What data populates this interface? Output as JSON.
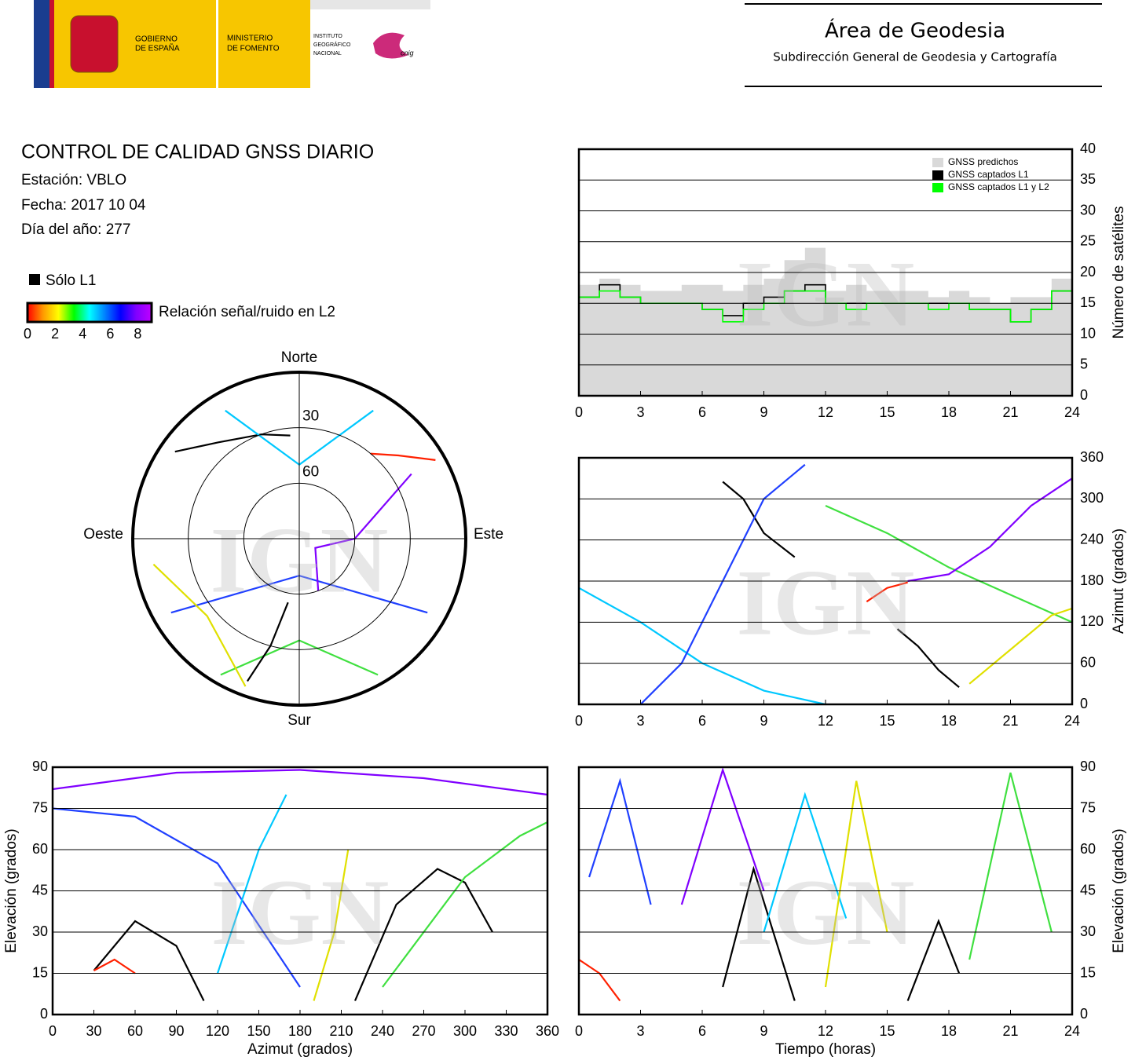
{
  "logos": {
    "gobierno": [
      "GOBIERNO",
      "DE ESPAÑA"
    ],
    "ministerio": [
      "MINISTERIO",
      "DE FOMENTO"
    ],
    "instituto": [
      "INSTITUTO",
      "GEOGRÁFICO",
      "NACIONAL"
    ],
    "cnig": "cnig"
  },
  "area": {
    "title": "Área de Geodesia",
    "subtitle": "Subdirección General de Geodesia y Cartografía"
  },
  "report": {
    "title": "CONTROL DE CALIDAD GNSS DIARIO",
    "lines": [
      "Estación: VBLO",
      "Fecha: 2017 10 04",
      "Día del año: 277"
    ]
  },
  "legend": {
    "solo_l1": "Sólo L1",
    "solo_l1_color": "#000000",
    "snr_label": "Relación señal/ruido en L2",
    "snr_lim": [
      0,
      9
    ],
    "snr_ticks": [
      0,
      2,
      4,
      6,
      8
    ],
    "snr_colors": [
      "#ff0000",
      "#ff9900",
      "#ffff00",
      "#00ff00",
      "#00ffff",
      "#0080ff",
      "#0000ff",
      "#8000ff",
      "#c000ff"
    ]
  },
  "watermark": "IGN",
  "chart_data": [
    {
      "type": "step",
      "xlim": [
        0,
        24
      ],
      "xticks": [
        0,
        3,
        6,
        9,
        12,
        15,
        18,
        21,
        24
      ],
      "ylim": [
        0,
        40
      ],
      "yticks": [
        0,
        5,
        10,
        15,
        20,
        25,
        30,
        35,
        40
      ],
      "ylabel": "Número de satélites",
      "y_axis_side": "right",
      "grid": true,
      "legend": "upper right",
      "x": [
        0,
        1,
        2,
        3,
        4,
        5,
        6,
        7,
        8,
        9,
        10,
        11,
        12,
        13,
        14,
        15,
        16,
        17,
        18,
        19,
        20,
        21,
        22,
        23,
        24
      ],
      "series": [
        {
          "name": "GNSS predichos",
          "color": "#d9d9d9",
          "style": "area",
          "values": [
            18,
            19,
            18,
            17,
            17,
            18,
            18,
            17,
            18,
            19,
            22,
            24,
            17,
            18,
            17,
            17,
            17,
            16,
            17,
            16,
            15,
            16,
            16,
            19,
            19
          ]
        },
        {
          "name": "GNSS captados L1",
          "color": "#000000",
          "style": "line",
          "values": [
            16,
            18,
            16,
            15,
            15,
            15,
            14,
            13,
            15,
            16,
            17,
            18,
            15,
            15,
            15,
            15,
            15,
            15,
            15,
            14,
            14,
            12,
            14,
            17,
            17
          ]
        },
        {
          "name": "GNSS captados L1 y L2",
          "color": "#00ff00",
          "style": "line",
          "values": [
            16,
            17,
            16,
            15,
            15,
            15,
            14,
            12,
            14,
            15,
            17,
            17,
            15,
            14,
            15,
            15,
            15,
            14,
            15,
            14,
            14,
            12,
            14,
            17,
            17
          ]
        }
      ]
    },
    {
      "type": "polar",
      "directions": {
        "north": "Norte",
        "south": "Sur",
        "east": "Este",
        "west": "Oeste"
      },
      "rlim": [
        90,
        0
      ],
      "rticks": [
        30,
        60
      ],
      "series": [
        {
          "color": "#000000",
          "azimuth": [
            305,
            320,
            340,
            355
          ],
          "elevation": [
            8,
            22,
            30,
            34
          ]
        },
        {
          "color": "#00c8ff",
          "azimuth": [
            330,
            0,
            30
          ],
          "elevation": [
            10,
            50,
            10
          ]
        },
        {
          "color": "#2040ff",
          "azimuth": [
            120,
            180,
            240
          ],
          "elevation": [
            10,
            70,
            10
          ]
        },
        {
          "color": "#40e040",
          "azimuth": [
            150,
            180,
            210
          ],
          "elevation": [
            5,
            35,
            5
          ]
        },
        {
          "color": "#8000ff",
          "azimuth": [
            60,
            90,
            120,
            160
          ],
          "elevation": [
            20,
            60,
            80,
            60
          ]
        },
        {
          "color": "#ff2000",
          "azimuth": [
            40,
            50,
            60
          ],
          "elevation": [
            30,
            20,
            5
          ]
        },
        {
          "color": "#e0e000",
          "azimuth": [
            200,
            230,
            260
          ],
          "elevation": [
            5,
            25,
            10
          ]
        },
        {
          "color": "#000000",
          "azimuth": [
            200,
            195,
            190
          ],
          "elevation": [
            8,
            30,
            55
          ]
        }
      ]
    },
    {
      "type": "line",
      "xlim": [
        0,
        24
      ],
      "xticks": [
        0,
        3,
        6,
        9,
        12,
        15,
        18,
        21,
        24
      ],
      "ylim": [
        0,
        360
      ],
      "yticks": [
        0,
        60,
        120,
        180,
        240,
        300,
        360
      ],
      "ylabel": "Azimut (grados)",
      "y_axis_side": "right",
      "grid": true,
      "series": [
        {
          "color": "#000000",
          "x": [
            7,
            8,
            9,
            10.5
          ],
          "values": [
            325,
            300,
            250,
            215
          ]
        },
        {
          "color": "#000000",
          "x": [
            15.5,
            16.5,
            17.5,
            18.5
          ],
          "values": [
            110,
            85,
            50,
            25
          ]
        },
        {
          "color": "#00c8ff",
          "x": [
            0,
            3,
            6,
            9,
            12
          ],
          "values": [
            170,
            120,
            60,
            20,
            0
          ]
        },
        {
          "color": "#2040ff",
          "x": [
            3,
            5,
            7,
            9,
            11
          ],
          "values": [
            0,
            60,
            180,
            300,
            350
          ]
        },
        {
          "color": "#40e040",
          "x": [
            12,
            15,
            18,
            21,
            24
          ],
          "values": [
            290,
            250,
            200,
            160,
            120
          ]
        },
        {
          "color": "#8000ff",
          "x": [
            16,
            18,
            20,
            22,
            24
          ],
          "values": [
            180,
            190,
            230,
            290,
            330
          ]
        },
        {
          "color": "#ff2000",
          "x": [
            14,
            15,
            16
          ],
          "values": [
            150,
            170,
            178
          ]
        },
        {
          "color": "#e0e000",
          "x": [
            19,
            21,
            23,
            24
          ],
          "values": [
            30,
            80,
            130,
            140
          ]
        }
      ]
    },
    {
      "type": "line",
      "xlim": [
        0,
        360
      ],
      "xticks": [
        0,
        30,
        60,
        90,
        120,
        150,
        180,
        210,
        240,
        270,
        300,
        330,
        360
      ],
      "ylim": [
        0,
        90
      ],
      "yticks": [
        0,
        15,
        30,
        45,
        60,
        75,
        90
      ],
      "xlabel": "Azimut (grados)",
      "ylabel": "Elevación (grados)",
      "y_axis_side": "left",
      "grid": true,
      "series": [
        {
          "color": "#000000",
          "x": [
            220,
            250,
            280,
            300,
            320
          ],
          "values": [
            5,
            40,
            53,
            48,
            30
          ]
        },
        {
          "color": "#000000",
          "x": [
            30,
            60,
            90,
            110
          ],
          "values": [
            16,
            34,
            25,
            5
          ]
        },
        {
          "color": "#ff2000",
          "x": [
            30,
            45,
            60
          ],
          "values": [
            16,
            20,
            15
          ]
        },
        {
          "color": "#2040ff",
          "x": [
            0,
            60,
            120,
            180
          ],
          "values": [
            75,
            72,
            55,
            10
          ]
        },
        {
          "color": "#00c8ff",
          "x": [
            120,
            150,
            170
          ],
          "values": [
            15,
            60,
            80
          ]
        },
        {
          "color": "#40e040",
          "x": [
            240,
            300,
            340,
            360
          ],
          "values": [
            10,
            50,
            65,
            70
          ]
        },
        {
          "color": "#8000ff",
          "x": [
            0,
            90,
            180,
            270,
            360
          ],
          "values": [
            82,
            88,
            89,
            86,
            80
          ]
        },
        {
          "color": "#e0e000",
          "x": [
            190,
            205,
            215
          ],
          "values": [
            5,
            30,
            60
          ]
        }
      ]
    },
    {
      "type": "line",
      "xlim": [
        0,
        24
      ],
      "xticks": [
        0,
        3,
        6,
        9,
        12,
        15,
        18,
        21,
        24
      ],
      "ylim": [
        0,
        90
      ],
      "yticks": [
        0,
        15,
        30,
        45,
        60,
        75,
        90
      ],
      "xlabel": "Tiempo (horas)",
      "ylabel": "Elevación (grados)",
      "y_axis_side": "right",
      "grid": true,
      "series": [
        {
          "color": "#000000",
          "x": [
            7,
            8.5,
            10.5
          ],
          "values": [
            10,
            53,
            5
          ]
        },
        {
          "color": "#000000",
          "x": [
            16,
            17.5,
            18.5
          ],
          "values": [
            5,
            34,
            15
          ]
        },
        {
          "color": "#2040ff",
          "x": [
            0.5,
            2,
            3.5
          ],
          "values": [
            50,
            85,
            40
          ]
        },
        {
          "color": "#8000ff",
          "x": [
            5,
            7,
            9
          ],
          "values": [
            40,
            89,
            45
          ]
        },
        {
          "color": "#00c8ff",
          "x": [
            9,
            11,
            13
          ],
          "values": [
            30,
            80,
            35
          ]
        },
        {
          "color": "#40e040",
          "x": [
            19,
            21,
            23
          ],
          "values": [
            20,
            88,
            30
          ]
        },
        {
          "color": "#ff2000",
          "x": [
            0,
            1,
            2
          ],
          "values": [
            20,
            15,
            5
          ]
        },
        {
          "color": "#e0e000",
          "x": [
            12,
            13.5,
            15
          ],
          "values": [
            10,
            85,
            30
          ]
        }
      ]
    }
  ]
}
